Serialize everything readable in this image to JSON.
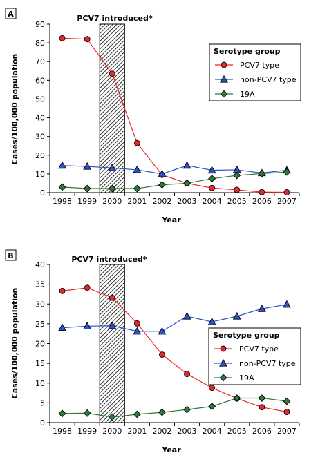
{
  "chart_data": [
    {
      "type": "line",
      "panel": "A",
      "annotation": "PCV7 introduced*",
      "xlabel": "Year",
      "ylabel": "Cases/100,000 population",
      "ylim": [
        0,
        90
      ],
      "yticks": [
        0,
        10,
        20,
        30,
        40,
        50,
        60,
        70,
        80,
        90
      ],
      "categories": [
        "1998",
        "1999",
        "2000",
        "2001",
        "2002",
        "2003",
        "2004",
        "2005",
        "2006",
        "2007"
      ],
      "shaded_category": "2000",
      "legend_title": "Serotype group",
      "legend_position": "top-right",
      "series": [
        {
          "name": "PCV7 type",
          "marker": "circle",
          "color": "#e8272b",
          "values": [
            82.5,
            82,
            63.5,
            26.5,
            9.5,
            5,
            2.5,
            1.5,
            0.3,
            0.2
          ]
        },
        {
          "name": "non-PCV7 type",
          "marker": "triangle",
          "color": "#2a54c7",
          "values": [
            14.5,
            14,
            13.2,
            12.2,
            10,
            14.5,
            12,
            12.2,
            10.5,
            12
          ]
        },
        {
          "name": "19A",
          "marker": "diamond",
          "color": "#2f7a3a",
          "values": [
            3,
            2.2,
            2.2,
            2.2,
            4.2,
            5,
            7.5,
            9.2,
            10.2,
            11
          ]
        }
      ]
    },
    {
      "type": "line",
      "panel": "B",
      "annotation": "PCV7 introduced*",
      "xlabel": "Year",
      "ylabel": "Cases/100,000 population",
      "ylim": [
        0,
        40
      ],
      "yticks": [
        0,
        5,
        10,
        15,
        20,
        25,
        30,
        35,
        40
      ],
      "categories": [
        "1998",
        "1999",
        "2000",
        "2001",
        "2002",
        "2003",
        "2004",
        "2005",
        "2006",
        "2007"
      ],
      "shaded_category": "2000",
      "legend_title": "Serotype group",
      "legend_position": "right",
      "series": [
        {
          "name": "PCV7 type",
          "marker": "circle",
          "color": "#e8272b",
          "values": [
            33.3,
            34.1,
            31.6,
            25.1,
            17.2,
            12.3,
            8.8,
            6.1,
            3.9,
            2.7
          ]
        },
        {
          "name": "non-PCV7 type",
          "marker": "triangle",
          "color": "#2a54c7",
          "values": [
            24,
            24.4,
            24.5,
            23.1,
            23.1,
            26.9,
            25.5,
            26.9,
            28.8,
            29.9
          ]
        },
        {
          "name": "19A",
          "marker": "diamond",
          "color": "#2f7a3a",
          "values": [
            2.3,
            2.4,
            1.4,
            2.1,
            2.6,
            3.3,
            4.1,
            6.2,
            6.2,
            5.4
          ]
        }
      ]
    }
  ]
}
